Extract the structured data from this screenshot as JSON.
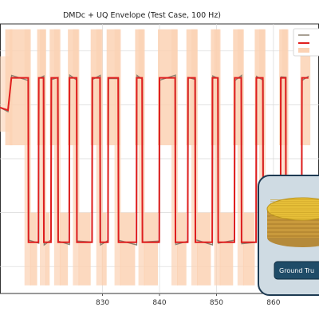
{
  "chart_data": {
    "type": "line",
    "title": "DMDc + UQ Envelope (Test Case, 100 Hz)",
    "xlabel": "",
    "ylabel": "",
    "xlim": [
      812,
      868
    ],
    "ylim": [
      0,
      1
    ],
    "x_ticks": [
      830,
      840,
      850,
      860
    ],
    "grid": true,
    "legend_position": "top-right",
    "colors": {
      "measured": "#8a8070",
      "prediction": "#e01e1e",
      "envelope": "#fbd2b4"
    },
    "high_level": 0.8,
    "low_level": 0.19,
    "pulses": [
      {
        "start": 813.2,
        "end": 813.9,
        "type": "initial"
      },
      {
        "start": 814.0,
        "end": 817.0,
        "type": "high"
      },
      {
        "start": 817.0,
        "end": 818.8,
        "type": "low"
      },
      {
        "start": 818.8,
        "end": 819.7,
        "type": "high"
      },
      {
        "start": 819.7,
        "end": 821.0,
        "type": "low"
      },
      {
        "start": 821.0,
        "end": 822.2,
        "type": "high"
      },
      {
        "start": 822.2,
        "end": 824.2,
        "type": "low"
      },
      {
        "start": 824.2,
        "end": 825.5,
        "type": "high"
      },
      {
        "start": 825.5,
        "end": 828.2,
        "type": "low"
      },
      {
        "start": 828.2,
        "end": 829.6,
        "type": "high"
      },
      {
        "start": 829.6,
        "end": 831.0,
        "type": "low"
      },
      {
        "start": 831.0,
        "end": 832.8,
        "type": "high"
      },
      {
        "start": 832.8,
        "end": 836.0,
        "type": "low"
      },
      {
        "start": 836.0,
        "end": 837.0,
        "type": "high"
      },
      {
        "start": 837.0,
        "end": 840.0,
        "type": "low"
      },
      {
        "start": 840.0,
        "end": 842.8,
        "type": "high"
      },
      {
        "start": 842.8,
        "end": 845.0,
        "type": "low"
      },
      {
        "start": 845.0,
        "end": 846.3,
        "type": "high"
      },
      {
        "start": 846.3,
        "end": 849.3,
        "type": "low"
      },
      {
        "start": 849.3,
        "end": 850.3,
        "type": "high"
      },
      {
        "start": 850.3,
        "end": 853.2,
        "type": "low"
      },
      {
        "start": 853.2,
        "end": 854.4,
        "type": "high"
      },
      {
        "start": 854.4,
        "end": 857.0,
        "type": "low"
      },
      {
        "start": 857.0,
        "end": 858.2,
        "type": "high"
      },
      {
        "start": 858.2,
        "end": 861.3,
        "type": "low"
      },
      {
        "start": 861.3,
        "end": 862.2,
        "type": "high"
      },
      {
        "start": 862.2,
        "end": 865.0,
        "type": "low"
      },
      {
        "start": 865.0,
        "end": 866.2,
        "type": "high"
      }
    ]
  },
  "inset": {
    "button_label": "Ground Tru"
  }
}
